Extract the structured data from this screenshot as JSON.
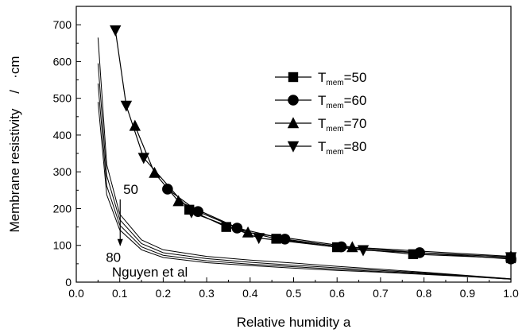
{
  "chart_data": {
    "type": "line",
    "xlabel": "Relative humidity a",
    "ylabel": "Membrane resistivity    /   ·cm",
    "xlim": [
      0.0,
      1.0
    ],
    "ylim": [
      0,
      750
    ],
    "xticks": [
      0.0,
      0.1,
      0.2,
      0.3,
      0.4,
      0.5,
      0.6,
      0.7,
      0.8,
      0.9,
      1.0
    ],
    "xtick_labels": [
      "0.0",
      "0.1",
      "0.2",
      "0.3",
      "0.4",
      "0.5",
      "0.6",
      "0.7",
      "0.8",
      "0.9",
      "1.0"
    ],
    "yticks": [
      0,
      100,
      200,
      300,
      400,
      500,
      600,
      700
    ],
    "ytick_labels": [
      "0",
      "100",
      "200",
      "300",
      "400",
      "500",
      "600",
      "700"
    ],
    "legend_position": "upper-right",
    "series": [
      {
        "name": "T_mem=50",
        "legend_main": "T",
        "legend_sub": "mem",
        "legend_rest": "=50",
        "marker": "square",
        "x": [
          0.26,
          0.345,
          0.46,
          0.6,
          0.775,
          1.0
        ],
        "y": [
          197,
          150,
          118,
          95,
          76,
          65
        ]
      },
      {
        "name": "T_mem=60",
        "legend_main": "T",
        "legend_sub": "mem",
        "legend_rest": "=60",
        "marker": "circle",
        "x": [
          0.21,
          0.28,
          0.37,
          0.48,
          0.61,
          0.79,
          1.0
        ],
        "y": [
          253,
          192,
          147,
          117,
          96,
          80,
          63
        ]
      },
      {
        "name": "T_mem=70",
        "legend_main": "T",
        "legend_sub": "mem",
        "legend_rest": "=70",
        "marker": "triangle-up",
        "x": [
          0.135,
          0.18,
          0.235,
          0.395,
          0.635,
          1.0
        ],
        "y": [
          425,
          297,
          220,
          135,
          95,
          70
        ]
      },
      {
        "name": "T_mem=80",
        "legend_main": "T",
        "legend_sub": "mem",
        "legend_rest": "=80",
        "marker": "triangle-down",
        "x": [
          0.09,
          0.115,
          0.155,
          0.265,
          0.42,
          0.66,
          1.0
        ],
        "y": [
          685,
          480,
          338,
          190,
          120,
          87,
          68
        ]
      },
      {
        "name": "Nguyen et al 50",
        "marker": "none",
        "x": [
          0.05,
          0.07,
          0.1,
          0.15,
          0.2,
          0.3,
          0.4,
          0.5,
          0.6,
          0.7,
          0.8,
          0.9,
          1.0
        ],
        "y": [
          665,
          320,
          185,
          115,
          88,
          70,
          60,
          52,
          43,
          35,
          27,
          18,
          9
        ]
      },
      {
        "name": "Nguyen et al 60",
        "marker": "none",
        "x": [
          0.05,
          0.07,
          0.1,
          0.15,
          0.2,
          0.3,
          0.4,
          0.5,
          0.6,
          0.7,
          0.8,
          0.9,
          1.0
        ],
        "y": [
          595,
          290,
          170,
          105,
          80,
          64,
          54,
          46,
          39,
          32,
          25,
          17,
          9
        ]
      },
      {
        "name": "Nguyen et al 70",
        "marker": "none",
        "x": [
          0.05,
          0.07,
          0.1,
          0.15,
          0.2,
          0.3,
          0.4,
          0.5,
          0.6,
          0.7,
          0.8,
          0.9,
          1.0
        ],
        "y": [
          540,
          262,
          155,
          96,
          73,
          58,
          49,
          42,
          35,
          29,
          23,
          16,
          8
        ]
      },
      {
        "name": "Nguyen et al 80",
        "marker": "none",
        "x": [
          0.05,
          0.07,
          0.1,
          0.15,
          0.2,
          0.3,
          0.4,
          0.5,
          0.6,
          0.7,
          0.8,
          0.9,
          1.0
        ],
        "y": [
          490,
          238,
          142,
          88,
          67,
          53,
          45,
          38,
          32,
          27,
          21,
          15,
          8
        ]
      }
    ],
    "annotations": [
      {
        "text": "50",
        "x": 0.108,
        "y": 240
      },
      {
        "text": "80",
        "x": 0.068,
        "y": 55
      },
      {
        "text": "Nguyen et al",
        "x": 0.082,
        "y": 15
      }
    ],
    "annotation_arrow": {
      "from": [
        0.101,
        225
      ],
      "to": [
        0.101,
        100
      ]
    }
  }
}
